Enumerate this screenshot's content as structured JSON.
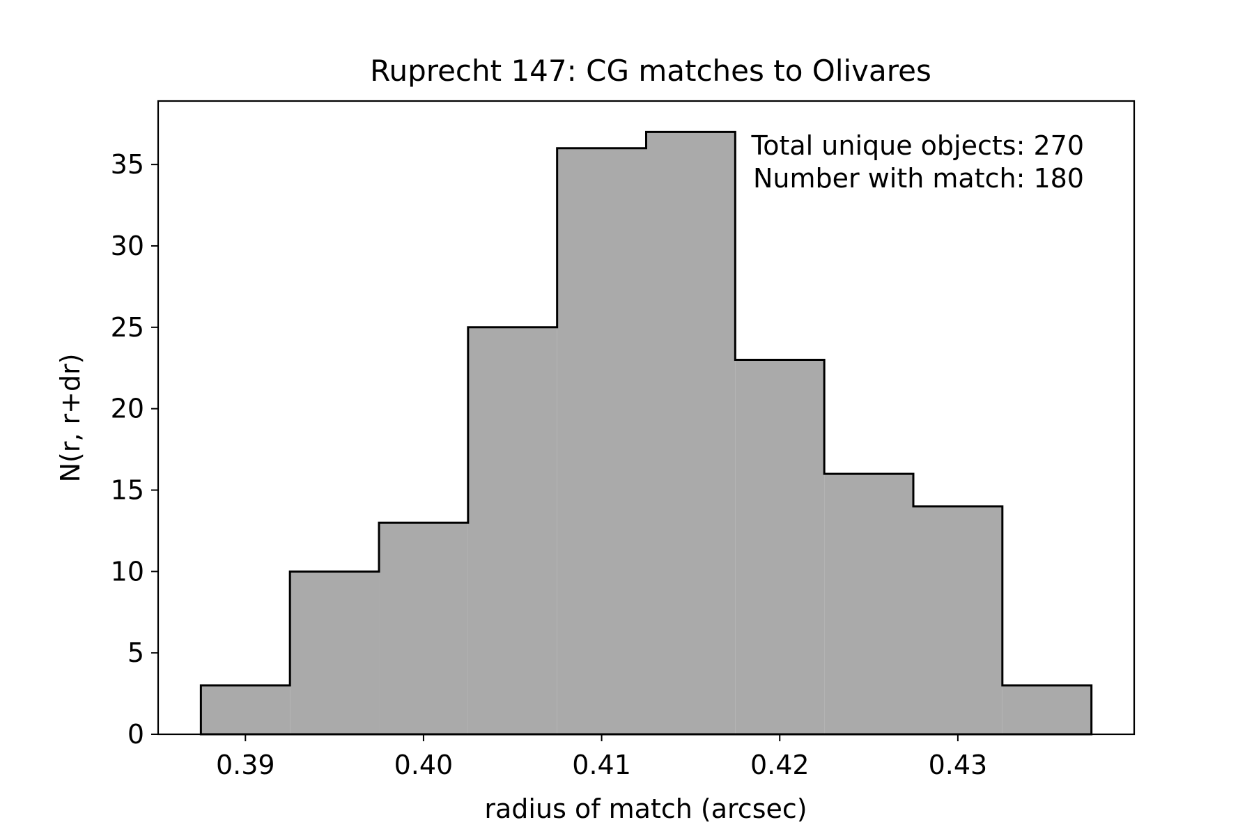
{
  "chart_data": {
    "type": "bar",
    "title": "Ruprecht 147: CG matches to Olivares",
    "xlabel": "radius of match (arcsec)",
    "ylabel": "N(r, r+dr)",
    "xlim": [
      0.3851,
      0.4399
    ],
    "ylim": [
      0,
      38.9
    ],
    "bin_edges": [
      0.3875,
      0.3925,
      0.3975,
      0.4025,
      0.4075,
      0.4125,
      0.4175,
      0.4225,
      0.4275,
      0.4325,
      0.4375
    ],
    "values": [
      3,
      10,
      13,
      25,
      36,
      37,
      23,
      16,
      14,
      3
    ],
    "x_ticks": [
      {
        "value": 0.39,
        "label": "0.39"
      },
      {
        "value": 0.4,
        "label": "0.40"
      },
      {
        "value": 0.41,
        "label": "0.41"
      },
      {
        "value": 0.42,
        "label": "0.42"
      },
      {
        "value": 0.43,
        "label": "0.43"
      }
    ],
    "y_ticks": [
      {
        "value": 0,
        "label": "0"
      },
      {
        "value": 5,
        "label": "5"
      },
      {
        "value": 10,
        "label": "10"
      },
      {
        "value": 15,
        "label": "15"
      },
      {
        "value": 20,
        "label": "20"
      },
      {
        "value": 25,
        "label": "25"
      },
      {
        "value": 30,
        "label": "30"
      },
      {
        "value": 35,
        "label": "35"
      }
    ],
    "annotations": [
      "Total unique objects: 270",
      "Number with match: 180"
    ],
    "grid": false,
    "annotation_placement": "top-right",
    "colors": {
      "fill": "#aaaaaa",
      "edge": "#000000"
    }
  }
}
